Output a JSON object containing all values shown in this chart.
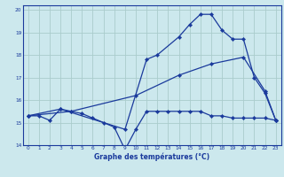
{
  "title": "Graphe des températures (°C)",
  "bg_color": "#cce8ed",
  "grid_color": "#aacccc",
  "line_color": "#1a3a9c",
  "xlim": [
    -0.5,
    23.5
  ],
  "ylim": [
    14,
    20.2
  ],
  "yticks": [
    14,
    15,
    16,
    17,
    18,
    19,
    20
  ],
  "xticks": [
    0,
    1,
    2,
    3,
    4,
    5,
    6,
    7,
    8,
    9,
    10,
    11,
    12,
    13,
    14,
    15,
    16,
    17,
    18,
    19,
    20,
    21,
    22,
    23
  ],
  "line1_x": [
    0,
    1,
    2,
    3,
    4,
    5,
    6,
    7,
    8,
    9,
    10,
    11,
    12,
    13,
    14,
    15,
    16,
    17,
    18,
    19,
    20,
    21,
    22,
    23
  ],
  "line1_y": [
    15.3,
    15.3,
    15.1,
    15.6,
    15.5,
    15.4,
    15.2,
    15.0,
    14.8,
    13.8,
    14.7,
    15.5,
    15.5,
    15.5,
    15.5,
    15.5,
    15.5,
    15.3,
    15.3,
    15.2,
    15.2,
    15.2,
    15.2,
    15.1
  ],
  "line2_x": [
    0,
    3,
    9,
    11,
    12,
    14,
    15,
    16,
    17,
    18,
    19,
    20,
    21,
    22,
    23
  ],
  "line2_y": [
    15.3,
    15.6,
    14.7,
    17.8,
    18.0,
    18.8,
    19.35,
    19.8,
    19.8,
    19.1,
    18.7,
    18.7,
    17.0,
    16.3,
    15.1
  ],
  "line3_x": [
    0,
    4,
    10,
    14,
    17,
    20,
    22,
    23
  ],
  "line3_y": [
    15.3,
    15.5,
    16.2,
    17.1,
    17.6,
    17.9,
    16.4,
    15.1
  ]
}
